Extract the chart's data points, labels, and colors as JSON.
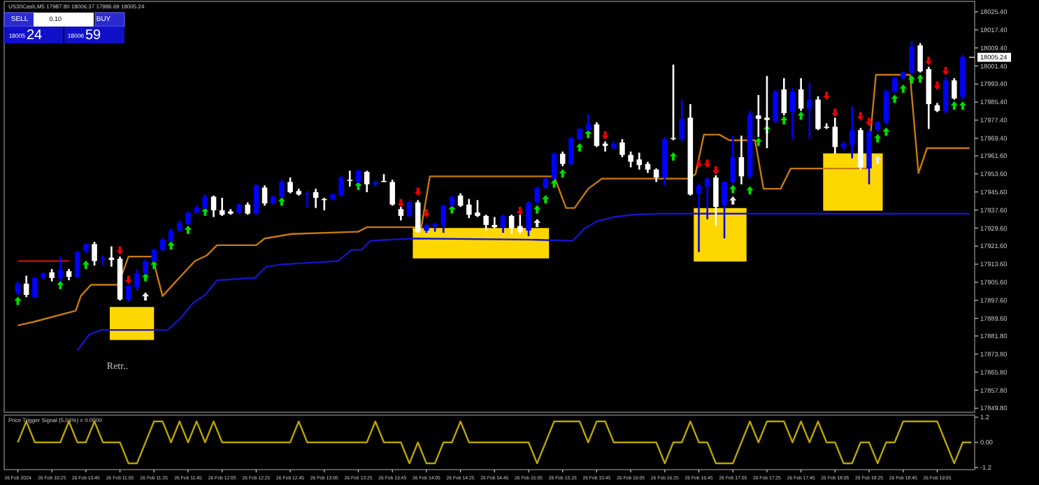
{
  "chart_data": [
    {
      "type": "candlestick",
      "title": "US30Cash,M5  17987.80 18006.37 17986.69 18005.24",
      "x": [
        "2024-02-26T10:05",
        "2024-02-26T10:10",
        "2024-02-26T10:15",
        "2024-02-26T10:20",
        "2024-02-26T10:25",
        "2024-02-26T10:30",
        "2024-02-26T10:35",
        "2024-02-26T10:40",
        "2024-02-26T10:45",
        "2024-02-26T10:50",
        "2024-02-26T10:55",
        "2024-02-26T11:00",
        "2024-02-26T11:05",
        "2024-02-26T11:10",
        "2024-02-26T11:15",
        "2024-02-26T11:20",
        "2024-02-26T11:25",
        "2024-02-26T11:30",
        "2024-02-26T11:35",
        "2024-02-26T11:40",
        "2024-02-26T11:45",
        "2024-02-26T11:50",
        "2024-02-26T11:55",
        "2024-02-26T12:00",
        "2024-02-26T12:05",
        "2024-02-26T12:10",
        "2024-02-26T12:15",
        "2024-02-26T12:20",
        "2024-02-26T12:25",
        "2024-02-26T12:30",
        "2024-02-26T12:35",
        "2024-02-26T12:40",
        "2024-02-26T12:45",
        "2024-02-26T12:50",
        "2024-02-26T12:55",
        "2024-02-26T13:00",
        "2024-02-26T13:05",
        "2024-02-26T13:10",
        "2024-02-26T13:15",
        "2024-02-26T13:20",
        "2024-02-26T13:25",
        "2024-02-26T13:30",
        "2024-02-26T13:35",
        "2024-02-26T13:40",
        "2024-02-26T13:45",
        "2024-02-26T13:50",
        "2024-02-26T13:55",
        "2024-02-26T14:00",
        "2024-02-26T14:05",
        "2024-02-26T14:10",
        "2024-02-26T14:15",
        "2024-02-26T14:20",
        "2024-02-26T14:25",
        "2024-02-26T14:30",
        "2024-02-26T14:35",
        "2024-02-26T14:40",
        "2024-02-26T14:45",
        "2024-02-26T14:50",
        "2024-02-26T14:55",
        "2024-02-26T15:00",
        "2024-02-26T15:05",
        "2024-02-26T15:10",
        "2024-02-26T15:15",
        "2024-02-26T15:20",
        "2024-02-26T15:25",
        "2024-02-26T15:30",
        "2024-02-26T15:35",
        "2024-02-26T15:40",
        "2024-02-26T15:45",
        "2024-02-26T15:50",
        "2024-02-26T15:55",
        "2024-02-26T16:00",
        "2024-02-26T16:05",
        "2024-02-26T16:10",
        "2024-02-26T16:15",
        "2024-02-26T16:20",
        "2024-02-26T16:25",
        "2024-02-26T16:30",
        "2024-02-26T16:35",
        "2024-02-26T16:40",
        "2024-02-26T16:45",
        "2024-02-26T16:50",
        "2024-02-26T16:55",
        "2024-02-26T17:00",
        "2024-02-26T17:05",
        "2024-02-26T17:10",
        "2024-02-26T17:15",
        "2024-02-26T17:20",
        "2024-02-26T17:25",
        "2024-02-26T17:30",
        "2024-02-26T17:35",
        "2024-02-26T17:40",
        "2024-02-26T17:45",
        "2024-02-26T17:50",
        "2024-02-26T17:55",
        "2024-02-26T18:00",
        "2024-02-26T18:05",
        "2024-02-26T18:10",
        "2024-02-26T18:15",
        "2024-02-26T18:20",
        "2024-02-26T18:25",
        "2024-02-26T18:30",
        "2024-02-26T18:35",
        "2024-02-26T18:40",
        "2024-02-26T18:45",
        "2024-02-26T18:50",
        "2024-02-26T18:55",
        "2024-02-26T19:00",
        "2024-02-26T19:05",
        "2024-02-26T19:10",
        "2024-02-26T19:15",
        "2024-02-26T19:20"
      ],
      "ohlc": [
        [
          17901,
          17906,
          17900,
          17905
        ],
        [
          17905,
          17908.5,
          17899,
          17900
        ],
        [
          17899,
          17908,
          17898.5,
          17907.5
        ],
        [
          17907.5,
          17910,
          17907,
          17909.5
        ],
        [
          17910,
          17911.5,
          17906,
          17907.5
        ],
        [
          17907.5,
          17917,
          17906,
          17911
        ],
        [
          17910.5,
          17911.5,
          17906.5,
          17908
        ],
        [
          17908,
          17919.5,
          17907.5,
          17919
        ],
        [
          17919.5,
          17923,
          17918.5,
          17922.5
        ],
        [
          17922.5,
          17923.5,
          17913,
          17915
        ],
        [
          17915.5,
          17917.5,
          17913,
          17916
        ],
        [
          17916.5,
          17921.5,
          17912.5,
          17915.5
        ],
        [
          17916,
          17917,
          17897.5,
          17898
        ],
        [
          17898,
          17904.5,
          17897,
          17904
        ],
        [
          17903.5,
          17911.5,
          17902,
          17909.5
        ],
        [
          17909.5,
          17916,
          17909,
          17915
        ],
        [
          17915,
          17920.5,
          17914.5,
          17920
        ],
        [
          17920,
          17925,
          17919.5,
          17924.5
        ],
        [
          17924,
          17929.5,
          17923.5,
          17928.5
        ],
        [
          17928.5,
          17933,
          17928,
          17932
        ],
        [
          17931.5,
          17937,
          17931,
          17936.5
        ],
        [
          17936.5,
          17939.5,
          17936,
          17938.5
        ],
        [
          17938.5,
          17944.5,
          17938,
          17943.5
        ],
        [
          17943.5,
          17944,
          17934.5,
          17937.5
        ],
        [
          17937.5,
          17943,
          17935,
          17935.5
        ],
        [
          17937,
          17938,
          17935.5,
          17936
        ],
        [
          17936.5,
          17940.5,
          17936,
          17940
        ],
        [
          17940,
          17941,
          17935.5,
          17936
        ],
        [
          17936,
          17949,
          17935.5,
          17948.5
        ],
        [
          17947.5,
          17948.5,
          17939.5,
          17940.5
        ],
        [
          17940.5,
          17944,
          17940,
          17943.5
        ],
        [
          17943.5,
          17951,
          17943,
          17950
        ],
        [
          17950,
          17952,
          17945,
          17945.5
        ],
        [
          17946,
          17947,
          17944,
          17944.5
        ],
        [
          17944.5,
          17946,
          17938.5,
          17945
        ],
        [
          17945.5,
          17947,
          17938.5,
          17943
        ],
        [
          17942.5,
          17943,
          17937.5,
          17942
        ],
        [
          17942.5,
          17945,
          17942,
          17944.5
        ],
        [
          17944,
          17953,
          17943.5,
          17952
        ],
        [
          17951,
          17955,
          17948,
          17950.5
        ],
        [
          17950,
          17955.5,
          17949.5,
          17955
        ],
        [
          17954.5,
          17955,
          17945.5,
          17949
        ],
        [
          17949,
          17950.5,
          17948,
          17950
        ],
        [
          17950.5,
          17953.5,
          17950,
          17950.5
        ],
        [
          17950,
          17951,
          17939.5,
          17940
        ],
        [
          17938,
          17939,
          17933,
          17935
        ],
        [
          17935,
          17941.5,
          17934.5,
          17941
        ],
        [
          17941,
          17942,
          17927.5,
          17928
        ],
        [
          17928.5,
          17931.5,
          17927.5,
          17931
        ],
        [
          17930.5,
          17932,
          17928,
          17931.5
        ],
        [
          17931,
          17940,
          17927.5,
          17939.5
        ],
        [
          17939.5,
          17944,
          17939,
          17943.5
        ],
        [
          17944,
          17945,
          17939,
          17939.5
        ],
        [
          17940,
          17942.5,
          17934,
          17935.5
        ],
        [
          17936.5,
          17942,
          17934.5,
          17935
        ],
        [
          17935,
          17935.5,
          17928.5,
          17931
        ],
        [
          17931,
          17934.5,
          17929.5,
          17930
        ],
        [
          17930,
          17935.5,
          17927.5,
          17935
        ],
        [
          17935,
          17935.5,
          17927,
          17929.5
        ],
        [
          17930.5,
          17935.5,
          17927,
          17928
        ],
        [
          17928.5,
          17941.5,
          17926,
          17941
        ],
        [
          17941,
          17948,
          17940.5,
          17947.5
        ],
        [
          17947.5,
          17952,
          17947,
          17951.5
        ],
        [
          17951.5,
          17963,
          17951,
          17962.5
        ],
        [
          17962.5,
          17963.5,
          17957,
          17958
        ],
        [
          17958,
          17970,
          17957.5,
          17969.5
        ],
        [
          17969,
          17974,
          17968.5,
          17973.5
        ],
        [
          17973,
          17980,
          17972.5,
          17975.5
        ],
        [
          17975.5,
          17976.5,
          17965.5,
          17966
        ],
        [
          17967,
          17968,
          17963.5,
          17966
        ],
        [
          17965,
          17968,
          17964.5,
          17967
        ],
        [
          17967.5,
          17969,
          17961,
          17962
        ],
        [
          17962,
          17963.5,
          17956.5,
          17959
        ],
        [
          17960,
          17963,
          17955.5,
          17957.5
        ],
        [
          17958,
          17959,
          17954,
          17955.5
        ],
        [
          17955.5,
          17956,
          17950,
          17952
        ],
        [
          17952,
          17970,
          17948.5,
          17969
        ],
        [
          17969.5,
          18002,
          17968.5,
          17969
        ],
        [
          17969,
          17986.5,
          17968,
          17978
        ],
        [
          17978.5,
          17984.5,
          17944,
          17944.5
        ],
        [
          17945,
          17949.5,
          17919,
          17948.5
        ],
        [
          17948,
          17952,
          17933.5,
          17951.5
        ],
        [
          17952,
          17953,
          17930.5,
          17939
        ],
        [
          17939.5,
          17950.5,
          17925,
          17950
        ],
        [
          17950,
          17970.5,
          17949,
          17961
        ],
        [
          17961,
          17970.5,
          17949,
          17952.5
        ],
        [
          17952.5,
          17981.5,
          17951.5,
          17980
        ],
        [
          17979.5,
          17988.5,
          17970,
          17978
        ],
        [
          17978.5,
          17997,
          17965,
          17977.5
        ],
        [
          17977,
          17991,
          17976,
          17990
        ],
        [
          17991,
          17996,
          17979.5,
          17980.5
        ],
        [
          17981,
          17991.5,
          17969,
          17990
        ],
        [
          17991,
          17996,
          17981.5,
          17982.5
        ],
        [
          17982.5,
          17994,
          17969,
          17986.5
        ],
        [
          17986.5,
          17988,
          17973,
          17973.5
        ],
        [
          17974.5,
          17976,
          17973.5,
          17974.5
        ],
        [
          17974.5,
          17978.5,
          17962.5,
          17965.5
        ],
        [
          17965.5,
          17968,
          17964,
          17967
        ],
        [
          17966.5,
          17983.5,
          17960.5,
          17973
        ],
        [
          17973,
          17974,
          17955.5,
          17956.5
        ],
        [
          17956,
          17973.5,
          17949,
          17972.5
        ],
        [
          17973,
          17977,
          17972,
          17976.5
        ],
        [
          17976.5,
          17991,
          17975.5,
          17990
        ],
        [
          17990,
          17996.5,
          17989.5,
          17996
        ],
        [
          17996,
          17999,
          17995.5,
          17998.5
        ],
        [
          17998.5,
          18012.5,
          17997.5,
          18010
        ],
        [
          18010.5,
          18011.5,
          17998.5,
          17999
        ],
        [
          18000,
          18001,
          17973.5,
          17984.5
        ],
        [
          17984,
          17985,
          17981,
          17981.5
        ],
        [
          17981.5,
          17996.5,
          17980.5,
          17995
        ],
        [
          17995,
          17996,
          17986.5,
          17987
        ],
        [
          17987.8,
          18006.37,
          17986.69,
          18005.24
        ]
      ],
      "colors": [
        "#0000ff",
        "#ffffff",
        "#0000ff",
        "#0000ff",
        "#ffffff",
        "#0000ff",
        "#ffffff",
        "#0000ff",
        "#0000ff",
        "#ffffff",
        "#0000ff",
        "#ffffff",
        "#ffffff",
        "#0000ff",
        "#0000ff",
        "#0000ff",
        "#0000ff",
        "#0000ff",
        "#0000ff",
        "#0000ff",
        "#0000ff",
        "#0000ff",
        "#0000ff",
        "#ffffff",
        "#ffffff",
        "#ffffff",
        "#0000ff",
        "#ffffff",
        "#0000ff",
        "#ffffff",
        "#0000ff",
        "#0000ff",
        "#ffffff",
        "#ffffff",
        "#0000ff",
        "#ffffff",
        "#ffffff",
        "#0000ff",
        "#0000ff",
        "#ffffff",
        "#0000ff",
        "#ffffff",
        "#0000ff",
        "#ffffff",
        "#ffffff",
        "#ffffff",
        "#0000ff",
        "#ffffff",
        "#0000ff",
        "#0000ff",
        "#0000ff",
        "#0000ff",
        "#ffffff",
        "#ffffff",
        "#ffffff",
        "#ffffff",
        "#ffffff",
        "#0000ff",
        "#ffffff",
        "#ffffff",
        "#0000ff",
        "#0000ff",
        "#0000ff",
        "#0000ff",
        "#ffffff",
        "#0000ff",
        "#0000ff",
        "#0000ff",
        "#ffffff",
        "#ffffff",
        "#0000ff",
        "#ffffff",
        "#ffffff",
        "#ffffff",
        "#ffffff",
        "#ffffff",
        "#0000ff",
        "#ffffff",
        "#0000ff",
        "#ffffff",
        "#0000ff",
        "#0000ff",
        "#ffffff",
        "#0000ff",
        "#0000ff",
        "#ffffff",
        "#0000ff",
        "#ffffff",
        "#ffffff",
        "#0000ff",
        "#ffffff",
        "#0000ff",
        "#ffffff",
        "#0000ff",
        "#ffffff",
        "#ffffff",
        "#ffffff",
        "#0000ff",
        "#0000ff",
        "#ffffff",
        "#0000ff",
        "#0000ff",
        "#0000ff",
        "#0000ff",
        "#0000ff",
        "#0000ff",
        "#ffffff",
        "#ffffff",
        "#ffffff",
        "#0000ff",
        "#ffffff",
        "#0000ff"
      ],
      "series": [
        {
          "type": "line",
          "color": "#ffd700",
          "x": [
            "2024-02-26T10:59",
            "2024-02-26T11:25"
          ],
          "lower": [
            17880,
            17880
          ],
          "upper": [
            17894.3,
            17894.3
          ],
          "values": [
            17894.3,
            17894.3
          ]
        },
        {
          "type": "line",
          "color": "#ffd700",
          "x": [
            "2024-02-26T13:57",
            "2024-02-26T15:17"
          ],
          "lower": [
            17916.2,
            17916.2
          ],
          "upper": [
            17929.3,
            17929.3
          ],
          "values": [
            17929.3,
            17929.3
          ]
        },
        {
          "type": "line",
          "color": "#ffd700",
          "x": [
            "2024-02-26T16:42",
            "2024-02-26T17:13"
          ],
          "lower": [
            17914.8,
            17914.8
          ],
          "upper": [
            17938.1,
            17938.1
          ],
          "values": [
            17938.1,
            17938.1
          ]
        },
        {
          "type": "line",
          "color": "#ffd700",
          "x": [
            "2024-02-26T17:58",
            "2024-02-26T18:33"
          ],
          "lower": [
            17937.3,
            17937.3
          ],
          "upper": [
            17962.3,
            17962.3
          ],
          "values": [
            17962.3,
            17962.3
          ]
        },
        {
          "type": "line",
          "color": "#c87a10",
          "x": [
            "2024-02-26T10:05",
            "2024-02-26T10:14",
            "2024-02-26T10:39",
            "2024-02-26T10:42",
            "2024-02-26T10:48",
            "2024-02-26T11:04",
            "2024-02-26T11:10",
            "2024-02-26T11:24",
            "2024-02-26T11:30",
            "2024-02-26T11:41",
            "2024-02-26T11:49",
            "2024-02-26T11:56",
            "2024-02-26T12:02",
            "2024-02-26T12:25",
            "2024-02-26T12:30",
            "2024-02-26T12:46",
            "2024-02-26T13:25",
            "2024-02-26T13:30",
            "2024-02-26T14:02",
            "2024-02-26T14:07",
            "2024-02-26T15:20",
            "2024-02-26T15:27",
            "2024-02-26T15:32",
            "2024-02-26T15:40",
            "2024-02-26T15:48",
            "2024-02-26T16:39",
            "2024-02-26T16:43",
            "2024-02-26T16:48",
            "2024-02-26T16:57",
            "2024-02-26T17:03",
            "2024-02-26T17:18",
            "2024-02-26T17:23",
            "2024-02-26T17:33",
            "2024-02-26T17:39",
            "2024-02-26T18:24",
            "2024-02-26T18:29",
            "2024-02-26T18:49",
            "2024-02-26T18:54",
            "2024-02-26T18:59",
            "2024-02-26T19:24"
          ],
          "values": [
            17886.5,
            17888,
            17893,
            17899.5,
            17904.5,
            17904.5,
            17917,
            17917,
            17899.5,
            17908.5,
            17915,
            17917.5,
            17922,
            17922,
            17925,
            17927,
            17928,
            17930,
            17930,
            17952.5,
            17952.5,
            17938.5,
            17938.5,
            17947,
            17951.5,
            17951.5,
            17953.5,
            17971,
            17971,
            17968.5,
            17968.5,
            17947,
            17947,
            17956,
            17956,
            17997.5,
            17997.5,
            17954,
            17965,
            17965
          ]
        },
        {
          "type": "line",
          "color": "#1414c8",
          "x": [
            "2024-02-26T10:40",
            "2024-02-26T10:47",
            "2024-02-26T10:54",
            "2024-02-26T11:33",
            "2024-02-26T11:41",
            "2024-02-26T11:48",
            "2024-02-26T11:55",
            "2024-02-26T12:02",
            "2024-02-26T12:24",
            "2024-02-26T12:31",
            "2024-02-26T12:40",
            "2024-02-26T13:13",
            "2024-02-26T13:21",
            "2024-02-26T13:27",
            "2024-02-26T13:32",
            "2024-02-26T13:57",
            "2024-02-26T15:04",
            "2024-02-26T15:31",
            "2024-02-26T15:38",
            "2024-02-26T15:45",
            "2024-02-26T15:55",
            "2024-02-26T16:06",
            "2024-02-26T16:22",
            "2024-02-26T19:24"
          ],
          "values": [
            17875.5,
            17882.5,
            17884.5,
            17884.5,
            17890,
            17896.5,
            17900,
            17906.5,
            17907.5,
            17912.5,
            17913.5,
            17915,
            17920,
            17920,
            17924,
            17925,
            17924.5,
            17924,
            17929.5,
            17932.5,
            17934.5,
            17935.5,
            17936,
            17936
          ]
        },
        {
          "type": "line",
          "color": "#b01010",
          "x": [
            "2024-02-26T10:05",
            "2024-02-26T10:35"
          ],
          "values": [
            17915,
            17915
          ]
        },
        {
          "type": "scatter",
          "marker": "triangle",
          "color": "#00dd00",
          "x": [
            "2024-02-26T10:05",
            "2024-02-26T10:30",
            "2024-02-26T10:45",
            "2024-02-26T11:20",
            "2024-02-26T11:25",
            "2024-02-26T11:35",
            "2024-02-26T11:45",
            "2024-02-26T11:55",
            "2024-02-26T12:40",
            "2024-02-26T13:25",
            "2024-02-26T14:20",
            "2024-02-26T15:10",
            "2024-02-26T15:15",
            "2024-02-26T15:20",
            "2024-02-26T15:25",
            "2024-02-26T15:35",
            "2024-02-26T15:40",
            "2024-02-26T16:30",
            "2024-02-26T17:05",
            "2024-02-26T17:15",
            "2024-02-26T17:20",
            "2024-02-26T17:25",
            "2024-02-26T17:35",
            "2024-02-26T17:45",
            "2024-02-26T18:30",
            "2024-02-26T18:35",
            "2024-02-26T18:40",
            "2024-02-26T18:45",
            "2024-02-26T18:50",
            "2024-02-26T18:55",
            "2024-02-26T19:15",
            "2024-02-26T19:20"
          ],
          "values": [
            17898,
            17905,
            17914,
            17908.5,
            17914,
            17922.5,
            17929.5,
            17937.5,
            17942,
            17949,
            17938.5,
            17938.5,
            17943,
            17950,
            17954.5,
            17966,
            17972,
            17962,
            17947.5,
            17947,
            17968.5,
            17974,
            17978,
            17980,
            17970,
            17973,
            17987.5,
            17992,
            17996,
            17996.5,
            17984.5,
            17984.5
          ]
        },
        {
          "type": "scatter",
          "marker": "triangle",
          "color": "#ee0000",
          "x": [
            "2024-02-26T11:05",
            "2024-02-26T11:10",
            "2024-02-26T13:50",
            "2024-02-26T14:00",
            "2024-02-26T14:05",
            "2024-02-26T15:00",
            "2024-02-26T15:50",
            "2024-02-26T16:45",
            "2024-02-26T16:50",
            "2024-02-26T16:55",
            "2024-02-26T18:00",
            "2024-02-26T18:05",
            "2024-02-26T18:20",
            "2024-02-26T18:25",
            "2024-02-26T19:00",
            "2024-02-26T19:05",
            "2024-02-26T19:10"
          ],
          "values": [
            17919,
            17906,
            17940,
            17945,
            17935.5,
            17936.5,
            17970,
            17957.5,
            17957.5,
            17954.5,
            17987.5,
            17980,
            17978.5,
            17976,
            18003,
            17992,
            17998.5
          ]
        },
        {
          "type": "scatter",
          "marker": "triangle",
          "color": "#e8e8e8",
          "x": [
            "2024-02-26T11:20",
            "2024-02-26T15:10",
            "2024-02-26T17:05",
            "2024-02-26T18:30"
          ],
          "values": [
            17900,
            17932.5,
            17942.5,
            17960.5
          ]
        }
      ],
      "xlim": [
        "2024-02-26T09:57",
        "2024-02-26T19:27"
      ],
      "ylim": [
        17848,
        18030
      ],
      "yticks": [
        {
          "value": 18025.4,
          "label": "18025.40"
        },
        {
          "value": 18017.4,
          "label": "18017.40"
        },
        {
          "value": 18009.4,
          "label": "18009.40"
        },
        {
          "value": 18001.4,
          "label": "18001.40"
        },
        {
          "value": 17993.4,
          "label": "17993.40"
        },
        {
          "value": 17985.4,
          "label": "17985.40"
        },
        {
          "value": 17977.4,
          "label": "17977.40"
        },
        {
          "value": 17969.4,
          "label": "17969.40"
        },
        {
          "value": 17961.6,
          "label": "17961.60"
        },
        {
          "value": 17953.6,
          "label": "17953.60"
        },
        {
          "value": 17945.6,
          "label": "17945.60"
        },
        {
          "value": 17937.6,
          "label": "17937.60"
        },
        {
          "value": 17929.6,
          "label": "17929.60"
        },
        {
          "value": 17921.6,
          "label": "17921.60"
        },
        {
          "value": 17913.6,
          "label": "17913.60"
        },
        {
          "value": 17905.6,
          "label": "17905.60"
        },
        {
          "value": 17897.6,
          "label": "17897.60"
        },
        {
          "value": 17889.6,
          "label": "17889.60"
        },
        {
          "value": 17881.8,
          "label": "17881.80"
        },
        {
          "value": 17873.8,
          "label": "17873.80"
        },
        {
          "value": 17865.8,
          "label": "17865.80"
        },
        {
          "value": 17857.8,
          "label": "17857.80"
        },
        {
          "value": 17849.8,
          "label": "17849.80"
        }
      ],
      "tick_labels": "y",
      "ref_lines": [
        {
          "axis": "y",
          "value": 18005.24,
          "label": "18005.24"
        }
      ],
      "annotations": [
        "SELL",
        "0.10",
        "BUY",
        "18005",
        "24",
        "18006",
        "59",
        "Retr.."
      ]
    },
    {
      "type": "line",
      "title": "Price Trigger Signal (5,04%) = 0.0000",
      "color": "#b8a400",
      "x": [
        "2024-02-26T10:05",
        "2024-02-26T10:10",
        "2024-02-26T10:15",
        "2024-02-26T10:20",
        "2024-02-26T10:25",
        "2024-02-26T10:30",
        "2024-02-26T10:35",
        "2024-02-26T10:40",
        "2024-02-26T10:45",
        "2024-02-26T10:50",
        "2024-02-26T10:55",
        "2024-02-26T11:00",
        "2024-02-26T11:05",
        "2024-02-26T11:10",
        "2024-02-26T11:15",
        "2024-02-26T11:20",
        "2024-02-26T11:25",
        "2024-02-26T11:30",
        "2024-02-26T11:35",
        "2024-02-26T11:40",
        "2024-02-26T11:45",
        "2024-02-26T11:50",
        "2024-02-26T11:55",
        "2024-02-26T12:00",
        "2024-02-26T12:05",
        "2024-02-26T12:10",
        "2024-02-26T12:15",
        "2024-02-26T12:20",
        "2024-02-26T12:25",
        "2024-02-26T12:30",
        "2024-02-26T12:35",
        "2024-02-26T12:40",
        "2024-02-26T12:45",
        "2024-02-26T12:50",
        "2024-02-26T12:55",
        "2024-02-26T13:00",
        "2024-02-26T13:05",
        "2024-02-26T13:10",
        "2024-02-26T13:15",
        "2024-02-26T13:20",
        "2024-02-26T13:25",
        "2024-02-26T13:30",
        "2024-02-26T13:35",
        "2024-02-26T13:40",
        "2024-02-26T13:45",
        "2024-02-26T13:50",
        "2024-02-26T13:55",
        "2024-02-26T14:00",
        "2024-02-26T14:05",
        "2024-02-26T14:10",
        "2024-02-26T14:15",
        "2024-02-26T14:20",
        "2024-02-26T14:25",
        "2024-02-26T14:30",
        "2024-02-26T14:35",
        "2024-02-26T14:40",
        "2024-02-26T14:45",
        "2024-02-26T14:50",
        "2024-02-26T14:55",
        "2024-02-26T15:00",
        "2024-02-26T15:05",
        "2024-02-26T15:10",
        "2024-02-26T15:15",
        "2024-02-26T15:20",
        "2024-02-26T15:25",
        "2024-02-26T15:30",
        "2024-02-26T15:35",
        "2024-02-26T15:40",
        "2024-02-26T15:45",
        "2024-02-26T15:50",
        "2024-02-26T15:55",
        "2024-02-26T16:00",
        "2024-02-26T16:05",
        "2024-02-26T16:10",
        "2024-02-26T16:15",
        "2024-02-26T16:20",
        "2024-02-26T16:25",
        "2024-02-26T16:30",
        "2024-02-26T16:35",
        "2024-02-26T16:40",
        "2024-02-26T16:45",
        "2024-02-26T16:50",
        "2024-02-26T16:55",
        "2024-02-26T17:00",
        "2024-02-26T17:05",
        "2024-02-26T17:10",
        "2024-02-26T17:15",
        "2024-02-26T17:20",
        "2024-02-26T17:25",
        "2024-02-26T17:30",
        "2024-02-26T17:35",
        "2024-02-26T17:40",
        "2024-02-26T17:45",
        "2024-02-26T17:50",
        "2024-02-26T17:55",
        "2024-02-26T18:00",
        "2024-02-26T18:05",
        "2024-02-26T18:10",
        "2024-02-26T18:15",
        "2024-02-26T18:20",
        "2024-02-26T18:25",
        "2024-02-26T18:30",
        "2024-02-26T18:35",
        "2024-02-26T18:40",
        "2024-02-26T18:45",
        "2024-02-26T18:50",
        "2024-02-26T18:55",
        "2024-02-26T19:00",
        "2024-02-26T19:05",
        "2024-02-26T19:10",
        "2024-02-26T19:15",
        "2024-02-26T19:20",
        "2024-02-26T19:25"
      ],
      "values": [
        0,
        1,
        0,
        0,
        0,
        0,
        1,
        0,
        0,
        1,
        0,
        0,
        0,
        -1,
        -1,
        0,
        1,
        1,
        0,
        1,
        0,
        1,
        0,
        1,
        0,
        0,
        0,
        0,
        0,
        0,
        0,
        0,
        0,
        1,
        0,
        0,
        0,
        0,
        0,
        0,
        0,
        0,
        1,
        0,
        0,
        0,
        -1,
        0,
        -1,
        -1,
        0,
        0,
        1,
        0,
        0,
        0,
        0,
        0,
        0,
        0,
        0,
        -1,
        0,
        1,
        1,
        1,
        1,
        0,
        1,
        1,
        0,
        0,
        0,
        0,
        0,
        0,
        -1,
        0,
        0,
        1,
        0,
        0,
        -1,
        -1,
        -1,
        0,
        1,
        0,
        1,
        1,
        1,
        0,
        1,
        0,
        1,
        0,
        0,
        -1,
        -1,
        0,
        0,
        -1,
        0,
        0,
        1,
        1,
        1,
        1,
        1,
        0,
        -1,
        0,
        0
      ],
      "xlim": [
        "2024-02-26T09:57",
        "2024-02-26T19:27"
      ],
      "ylim": [
        -1.3,
        1.3
      ],
      "yticks": [
        1.2,
        {
          "value": 0,
          "label": "0.00"
        },
        -1.2
      ],
      "xticks": [
        {
          "value": "2024-02-26T10:05",
          "label": "26 Feb 2024"
        },
        {
          "value": "2024-02-26T10:25",
          "label": "26 Feb 10:25"
        },
        {
          "value": "2024-02-26T10:45",
          "label": "26 Feb 10:45"
        },
        {
          "value": "2024-02-26T11:05",
          "label": "26 Feb 11:05"
        },
        {
          "value": "2024-02-26T11:25",
          "label": "26 Feb 11:25"
        },
        {
          "value": "2024-02-26T11:45",
          "label": "26 Feb 11:45"
        },
        {
          "value": "2024-02-26T12:05",
          "label": "26 Feb 12:05"
        },
        {
          "value": "2024-02-26T12:25",
          "label": "26 Feb 12:25"
        },
        {
          "value": "2024-02-26T12:45",
          "label": "26 Feb 12:45"
        },
        {
          "value": "2024-02-26T13:05",
          "label": "26 Feb 13:05"
        },
        {
          "value": "2024-02-26T13:25",
          "label": "26 Feb 13:25"
        },
        {
          "value": "2024-02-26T13:45",
          "label": "26 Feb 13:45"
        },
        {
          "value": "2024-02-26T14:05",
          "label": "26 Feb 14:05"
        },
        {
          "value": "2024-02-26T14:25",
          "label": "26 Feb 14:25"
        },
        {
          "value": "2024-02-26T14:45",
          "label": "26 Feb 14:45"
        },
        {
          "value": "2024-02-26T15:05",
          "label": "26 Feb 15:05"
        },
        {
          "value": "2024-02-26T15:25",
          "label": "26 Feb 15:25"
        },
        {
          "value": "2024-02-26T15:45",
          "label": "26 Feb 15:45"
        },
        {
          "value": "2024-02-26T16:05",
          "label": "26 Feb 16:05"
        },
        {
          "value": "2024-02-26T16:25",
          "label": "26 Feb 16:25"
        },
        {
          "value": "2024-02-26T16:45",
          "label": "26 Feb 16:45"
        },
        {
          "value": "2024-02-26T17:05",
          "label": "26 Feb 17:05"
        },
        {
          "value": "2024-02-26T17:25",
          "label": "26 Feb 17:25"
        },
        {
          "value": "2024-02-26T17:45",
          "label": "26 Feb 17:45"
        },
        {
          "value": "2024-02-26T18:05",
          "label": "26 Feb 18:05"
        },
        {
          "value": "2024-02-26T18:25",
          "label": "26 Feb 18:25"
        },
        {
          "value": "2024-02-26T18:45",
          "label": "26 Feb 18:45"
        },
        {
          "value": "2024-02-26T19:05",
          "label": "26 Feb 19:05"
        }
      ]
    }
  ]
}
